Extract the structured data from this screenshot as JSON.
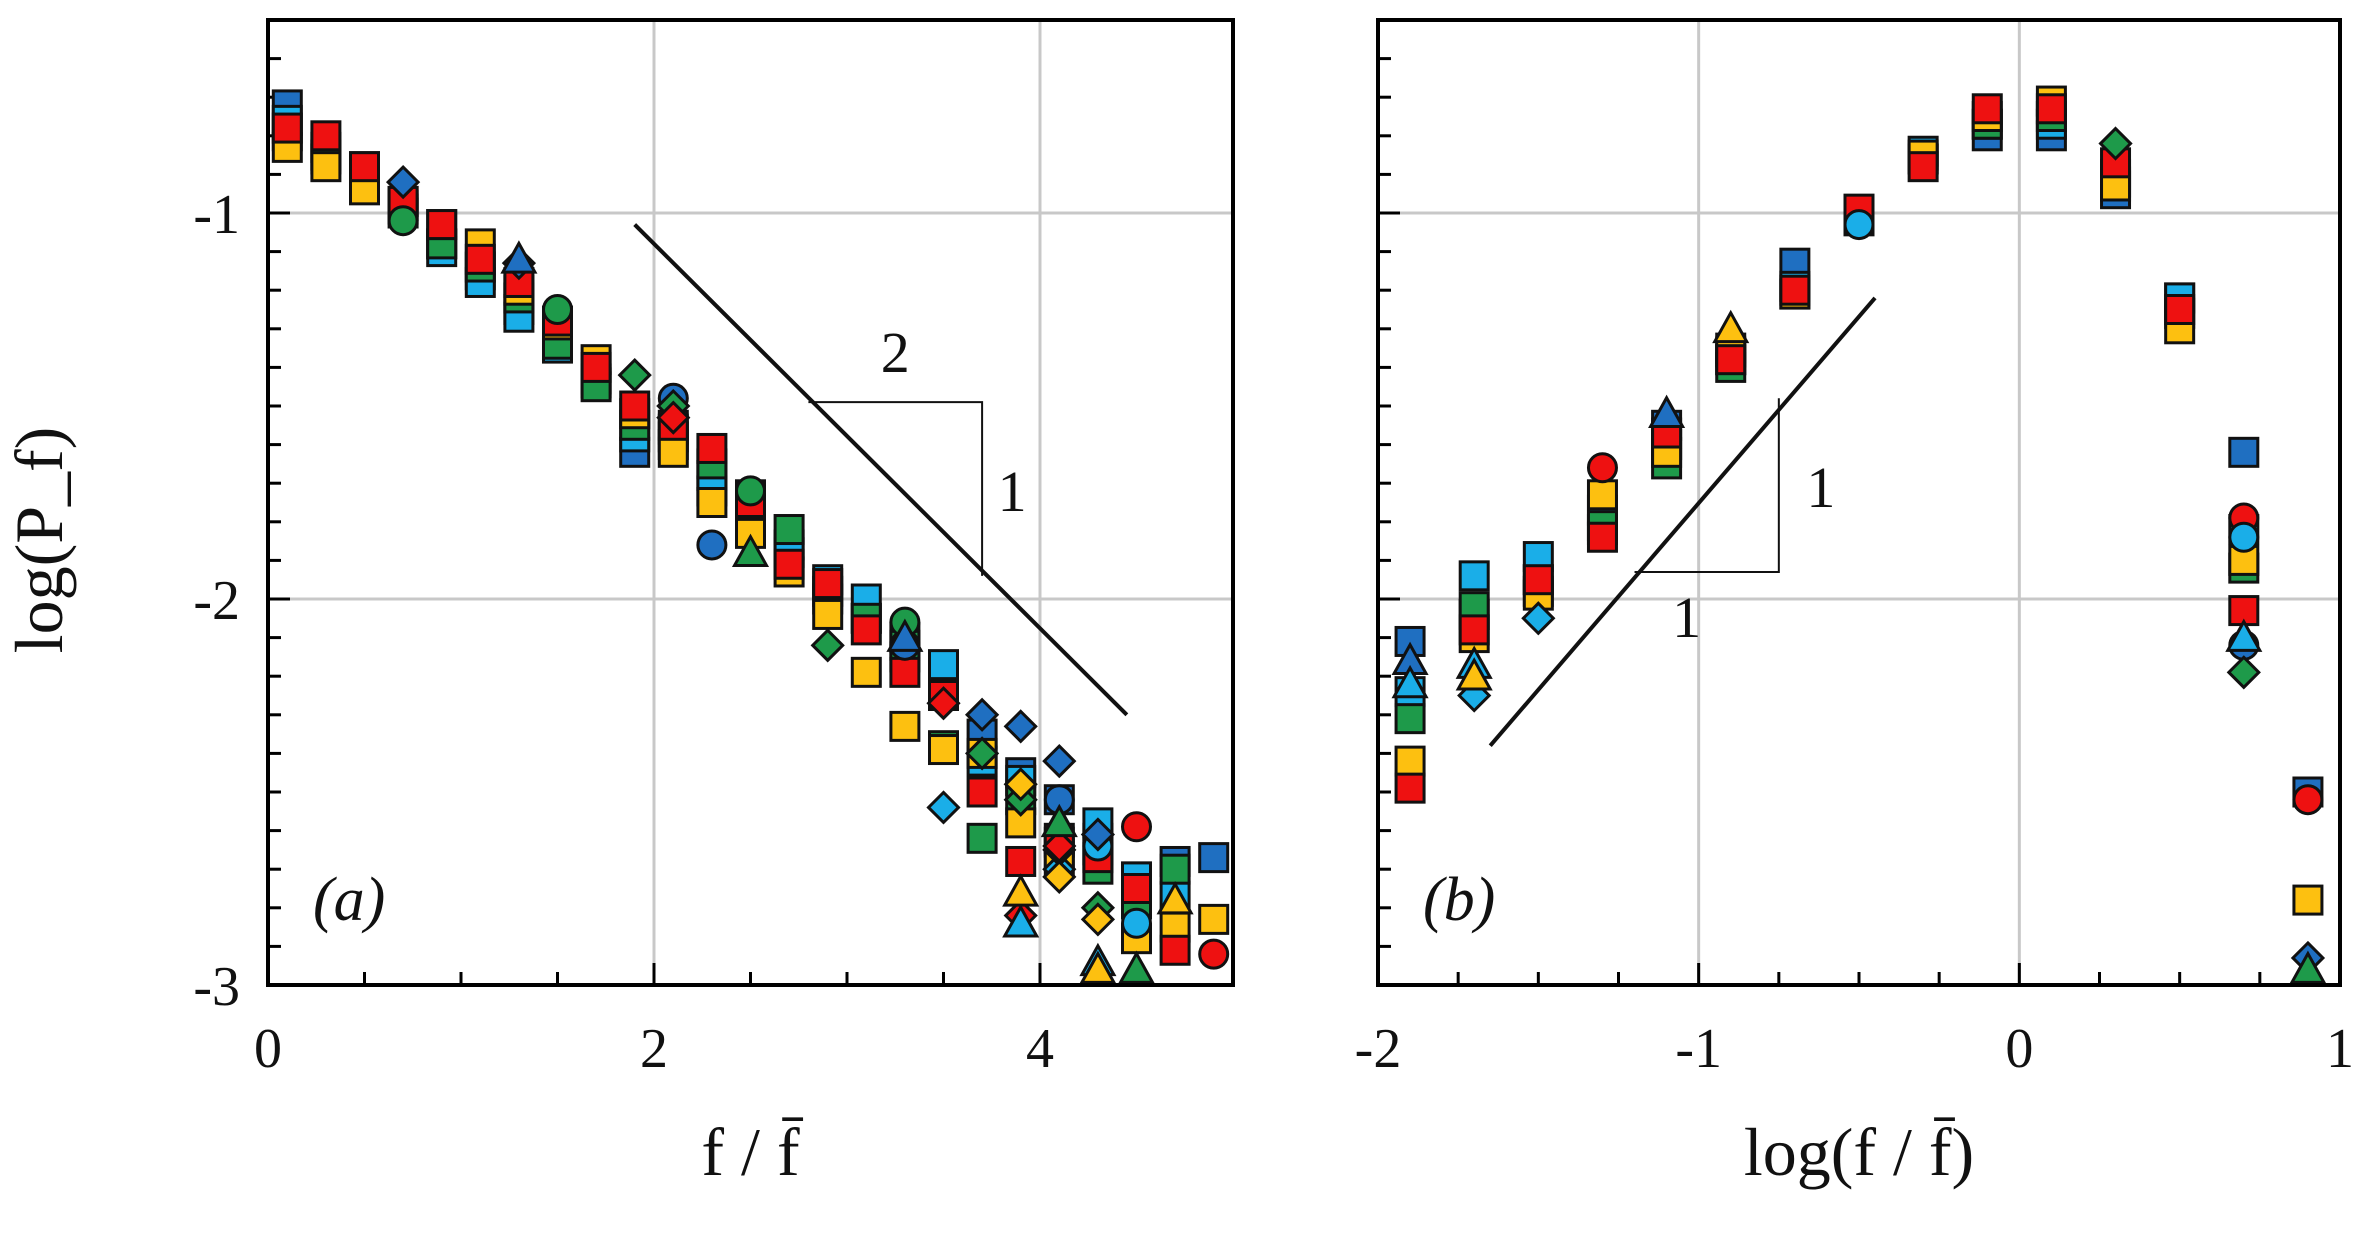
{
  "colors": {
    "blue": "#1F6FC1",
    "cyan": "#1AAEE8",
    "green": "#1E9A4A",
    "yellow": "#FDC010",
    "red": "#EE1111"
  },
  "chart_data": [
    {
      "panel": "a",
      "type": "scatter",
      "panel_label": "(a)",
      "xlabel": "f / f̄",
      "ylabel": "log(P_f)",
      "ylabel_main": "log(",
      "ylabel_sym": "P",
      "ylabel_sub": "f",
      "ylabel_end": ")",
      "xlim": [
        0,
        5
      ],
      "ylim": [
        -3,
        -0.5
      ],
      "xticks": [
        0,
        2,
        4
      ],
      "xtick_labels": [
        "0",
        "2",
        "4"
      ],
      "yticks": [
        -1,
        -2,
        -3
      ],
      "ytick_labels": [
        "-1",
        "-2",
        "-3"
      ],
      "grid": true,
      "series": [
        {
          "name": "blue squares",
          "color": "blue",
          "marker": "square",
          "x": [
            0.1,
            0.3,
            0.5,
            0.7,
            0.9,
            1.1,
            1.3,
            1.5,
            1.7,
            1.9,
            2.1,
            2.3,
            2.5,
            2.7,
            2.9,
            3.1,
            3.3,
            3.5,
            3.7,
            3.9,
            4.1,
            4.3,
            4.5,
            4.7,
            4.9
          ],
          "y": [
            -0.72,
            -0.83,
            -0.88,
            -0.97,
            -1.08,
            -1.16,
            -1.25,
            -1.31,
            -1.43,
            -1.62,
            -1.6,
            -1.68,
            -1.77,
            -1.88,
            -2.0,
            -2.05,
            -2.1,
            -2.22,
            -2.35,
            -2.45,
            -2.52,
            -2.62,
            -2.72,
            -2.68,
            -2.67
          ]
        },
        {
          "name": "cyan squares",
          "color": "cyan",
          "marker": "square",
          "x": [
            0.1,
            0.3,
            0.5,
            0.7,
            0.9,
            1.1,
            1.3,
            1.5,
            1.7,
            1.9,
            2.1,
            2.3,
            2.5,
            2.7,
            2.9,
            3.1,
            3.3,
            3.5,
            3.7,
            3.9,
            4.1,
            4.3,
            4.5,
            4.7
          ],
          "y": [
            -0.76,
            -0.85,
            -0.9,
            -0.99,
            -1.1,
            -1.18,
            -1.27,
            -1.35,
            -1.44,
            -1.58,
            -1.58,
            -1.72,
            -1.8,
            -1.86,
            -1.95,
            -2.0,
            -2.15,
            -2.17,
            -2.42,
            -2.47,
            -2.63,
            -2.58,
            -2.72,
            -2.77
          ]
        },
        {
          "name": "green squares",
          "color": "green",
          "marker": "square",
          "x": [
            0.1,
            0.3,
            0.5,
            0.7,
            0.9,
            1.1,
            1.3,
            1.5,
            1.7,
            1.9,
            2.1,
            2.3,
            2.5,
            2.7,
            2.9,
            3.1,
            3.3,
            3.5,
            3.7,
            3.9,
            4.1,
            4.3,
            4.5,
            4.7
          ],
          "y": [
            -0.8,
            -0.86,
            -0.92,
            -1.0,
            -1.08,
            -1.14,
            -1.22,
            -1.34,
            -1.45,
            -1.55,
            -1.56,
            -1.65,
            -1.73,
            -1.82,
            -1.98,
            -2.05,
            -2.12,
            -2.38,
            -2.62,
            -2.52,
            -2.66,
            -2.7,
            -2.79,
            -2.7
          ]
        },
        {
          "name": "yellow squares",
          "color": "yellow",
          "marker": "square",
          "x": [
            0.1,
            0.3,
            0.5,
            0.7,
            0.9,
            1.1,
            1.3,
            1.5,
            1.7,
            1.9,
            2.1,
            2.3,
            2.5,
            2.7,
            2.9,
            3.1,
            3.3,
            3.5,
            3.7,
            3.9,
            4.1,
            4.3,
            4.5,
            4.7,
            4.9
          ],
          "y": [
            -0.83,
            -0.88,
            -0.94,
            -0.98,
            -1.03,
            -1.08,
            -1.2,
            -1.29,
            -1.38,
            -1.52,
            -1.62,
            -1.75,
            -1.83,
            -1.93,
            -2.04,
            -2.19,
            -2.33,
            -2.39,
            -2.4,
            -2.58,
            -2.68,
            -2.65,
            -2.88,
            -2.85,
            -2.83
          ]
        },
        {
          "name": "red squares",
          "color": "red",
          "marker": "square",
          "x": [
            0.1,
            0.3,
            0.5,
            0.7,
            0.9,
            1.1,
            1.3,
            1.5,
            1.7,
            1.9,
            2.1,
            2.3,
            2.5,
            2.7,
            2.9,
            3.1,
            3.3,
            3.5,
            3.7,
            3.9,
            4.1,
            4.3,
            4.5,
            4.7
          ],
          "y": [
            -0.78,
            -0.8,
            -0.88,
            -0.97,
            -1.03,
            -1.12,
            -1.18,
            -1.28,
            -1.4,
            -1.5,
            -1.55,
            -1.61,
            -1.75,
            -1.91,
            -1.96,
            -2.08,
            -2.19,
            -2.25,
            -2.5,
            -2.68,
            -2.62,
            -2.67,
            -2.75,
            -2.91
          ]
        },
        {
          "name": "blue circles",
          "color": "blue",
          "marker": "circle",
          "x": [
            2.1,
            2.3,
            3.3,
            4.1
          ],
          "y": [
            -1.48,
            -1.86,
            -2.12,
            -2.52
          ]
        },
        {
          "name": "cyan circles",
          "color": "cyan",
          "marker": "circle",
          "x": [
            4.3,
            4.5
          ],
          "y": [
            -2.64,
            -2.84
          ]
        },
        {
          "name": "green circles",
          "color": "green",
          "marker": "circle",
          "x": [
            0.7,
            1.5,
            2.5,
            3.3
          ],
          "y": [
            -1.02,
            -1.25,
            -1.72,
            -2.06
          ]
        },
        {
          "name": "red circles",
          "color": "red",
          "marker": "circle",
          "x": [
            4.5,
            4.9
          ],
          "y": [
            -2.59,
            -2.92
          ]
        },
        {
          "name": "blue diamonds",
          "color": "blue",
          "marker": "diamond",
          "x": [
            0.7,
            1.3,
            3.7,
            3.9,
            4.1,
            4.3
          ],
          "y": [
            -0.92,
            -1.13,
            -2.3,
            -2.33,
            -2.42,
            -2.61
          ]
        },
        {
          "name": "cyan diamonds",
          "color": "cyan",
          "marker": "diamond",
          "x": [
            3.5,
            4.1
          ],
          "y": [
            -2.54,
            -2.7
          ]
        },
        {
          "name": "green diamonds",
          "color": "green",
          "marker": "diamond",
          "x": [
            1.9,
            2.1,
            2.9,
            3.7,
            3.9,
            4.1,
            4.3
          ],
          "y": [
            -1.42,
            -1.5,
            -2.12,
            -2.4,
            -2.52,
            -2.65,
            -2.8
          ]
        },
        {
          "name": "yellow diamonds",
          "color": "yellow",
          "marker": "diamond",
          "x": [
            3.9,
            4.1,
            4.3
          ],
          "y": [
            -2.48,
            -2.72,
            -2.83
          ]
        },
        {
          "name": "red diamonds",
          "color": "red",
          "marker": "diamond",
          "x": [
            2.1,
            3.5,
            3.9,
            4.1
          ],
          "y": [
            -1.53,
            -2.27,
            -2.82,
            -2.64
          ]
        },
        {
          "name": "blue triangles",
          "color": "blue",
          "marker": "triangle",
          "x": [
            1.3,
            3.3
          ],
          "y": [
            -1.12,
            -2.1
          ]
        },
        {
          "name": "cyan triangles",
          "color": "cyan",
          "marker": "triangle",
          "x": [
            3.9,
            4.3
          ],
          "y": [
            -2.84,
            -2.94
          ]
        },
        {
          "name": "green triangles",
          "color": "green",
          "marker": "triangle",
          "x": [
            2.5,
            4.1,
            4.5
          ],
          "y": [
            -1.88,
            -2.58,
            -2.96
          ]
        },
        {
          "name": "yellow triangles",
          "color": "yellow",
          "marker": "triangle",
          "x": [
            3.9,
            4.3,
            4.7
          ],
          "y": [
            -2.76,
            -2.96,
            -2.78
          ]
        }
      ],
      "slope_guide": {
        "x": [
          1.9,
          4.45
        ],
        "y": [
          -1.03,
          -2.3
        ],
        "run_label": "2",
        "rise_label": "1",
        "tri_x": [
          2.8,
          3.7
        ],
        "tri_y": [
          -1.49,
          -1.94
        ]
      }
    },
    {
      "panel": "b",
      "type": "scatter",
      "panel_label": "(b)",
      "xlabel": "log(f / f̄)",
      "ylabel": "",
      "xlim": [
        -2,
        1
      ],
      "ylim": [
        -3,
        -0.5
      ],
      "xticks": [
        -2,
        -1,
        0,
        1
      ],
      "xtick_labels": [
        "-2",
        "-1",
        "0",
        "1"
      ],
      "yticks": [
        -1,
        -2,
        -3
      ],
      "ytick_labels": [
        "",
        "",
        ""
      ],
      "grid": true,
      "series": [
        {
          "name": "blue squares",
          "color": "blue",
          "marker": "square",
          "x": [
            -1.9,
            -1.7,
            -1.5,
            -1.3,
            -1.1,
            -0.9,
            -0.7,
            -0.5,
            -0.3,
            -0.1,
            0.1,
            0.3,
            0.5,
            0.7,
            0.9
          ],
          "y": [
            -2.11,
            -2.04,
            -1.95,
            -1.82,
            -1.55,
            -1.35,
            -1.13,
            -1.02,
            -0.86,
            -0.8,
            -0.8,
            -0.95,
            -1.22,
            -1.62,
            -2.5
          ]
        },
        {
          "name": "cyan squares",
          "color": "cyan",
          "marker": "square",
          "x": [
            -1.9,
            -1.7,
            -1.5,
            -1.3,
            -1.1,
            -0.9,
            -0.7,
            -0.5,
            -0.3,
            -0.1,
            0.1,
            0.3,
            0.5,
            0.7
          ],
          "y": [
            -2.24,
            -1.94,
            -1.89,
            -1.77,
            -1.6,
            -1.38,
            -1.19,
            -1.0,
            -0.84,
            -0.77,
            -0.77,
            -0.92,
            -1.22,
            -1.82
          ]
        },
        {
          "name": "green squares",
          "color": "green",
          "marker": "square",
          "x": [
            -1.9,
            -1.7,
            -1.5,
            -1.3,
            -1.1,
            -0.9,
            -0.7,
            -0.5,
            -0.3,
            -0.1,
            0.1,
            0.3,
            0.5,
            0.7
          ],
          "y": [
            -2.31,
            -2.02,
            -1.98,
            -1.81,
            -1.65,
            -1.4,
            -1.21,
            -1.0,
            -0.86,
            -0.77,
            -0.75,
            -0.9,
            -1.26,
            -1.92
          ]
        },
        {
          "name": "yellow squares",
          "color": "yellow",
          "marker": "square",
          "x": [
            -1.9,
            -1.7,
            -1.5,
            -1.3,
            -1.1,
            -0.9,
            -0.7,
            -0.5,
            -0.3,
            -0.1,
            0.1,
            0.3,
            0.5,
            0.7,
            0.9
          ],
          "y": [
            -2.42,
            -2.1,
            -1.99,
            -1.73,
            -1.62,
            -1.36,
            -1.21,
            -1.02,
            -0.85,
            -0.75,
            -0.71,
            -0.93,
            -1.3,
            -1.9,
            -2.78
          ]
        },
        {
          "name": "red squares",
          "color": "red",
          "marker": "square",
          "x": [
            -1.9,
            -1.7,
            -1.5,
            -1.3,
            -1.1,
            -0.9,
            -0.7,
            -0.5,
            -0.3,
            -0.1,
            0.1,
            0.3,
            0.5,
            0.7
          ],
          "y": [
            -2.49,
            -2.08,
            -1.95,
            -1.84,
            -1.57,
            -1.38,
            -1.2,
            -0.99,
            -0.88,
            -0.73,
            -0.73,
            -0.87,
            -1.25,
            -2.03
          ]
        },
        {
          "name": "red circles",
          "color": "red",
          "marker": "circle",
          "x": [
            -1.3,
            0.7,
            0.9
          ],
          "y": [
            -1.66,
            -1.79,
            -2.52
          ]
        },
        {
          "name": "cyan circles",
          "color": "cyan",
          "marker": "circle",
          "x": [
            -0.5,
            0.7
          ],
          "y": [
            -1.03,
            -1.84
          ]
        },
        {
          "name": "blue circles",
          "color": "blue",
          "marker": "circle",
          "x": [
            0.7
          ],
          "y": [
            -2.12
          ]
        },
        {
          "name": "cyan diamonds",
          "color": "cyan",
          "marker": "diamond",
          "x": [
            -1.7,
            -1.5
          ],
          "y": [
            -2.25,
            -2.05
          ]
        },
        {
          "name": "green diamonds",
          "color": "green",
          "marker": "diamond",
          "x": [
            0.3,
            0.7
          ],
          "y": [
            -0.82,
            -2.19
          ]
        },
        {
          "name": "blue diamonds",
          "color": "blue",
          "marker": "diamond",
          "x": [
            0.9
          ],
          "y": [
            -2.93
          ]
        },
        {
          "name": "blue triangles",
          "color": "blue",
          "marker": "triangle",
          "x": [
            -1.9,
            -1.1
          ],
          "y": [
            -2.16,
            -1.52
          ]
        },
        {
          "name": "cyan triangles",
          "color": "cyan",
          "marker": "triangle",
          "x": [
            -1.9,
            -1.7,
            0.7
          ],
          "y": [
            -2.22,
            -2.17,
            -2.1
          ]
        },
        {
          "name": "green triangles",
          "color": "green",
          "marker": "triangle",
          "x": [
            0.9
          ],
          "y": [
            -2.96
          ]
        },
        {
          "name": "yellow triangles",
          "color": "yellow",
          "marker": "triangle",
          "x": [
            -1.7,
            -0.9
          ],
          "y": [
            -2.2,
            -1.3
          ]
        }
      ],
      "slope_guide": {
        "x": [
          -1.65,
          -0.45
        ],
        "y": [
          -2.38,
          -1.22
        ],
        "run_label": "1",
        "rise_label": "1",
        "tri_x": [
          -1.2,
          -0.75
        ],
        "tri_y": [
          -1.93,
          -1.48
        ]
      }
    }
  ]
}
